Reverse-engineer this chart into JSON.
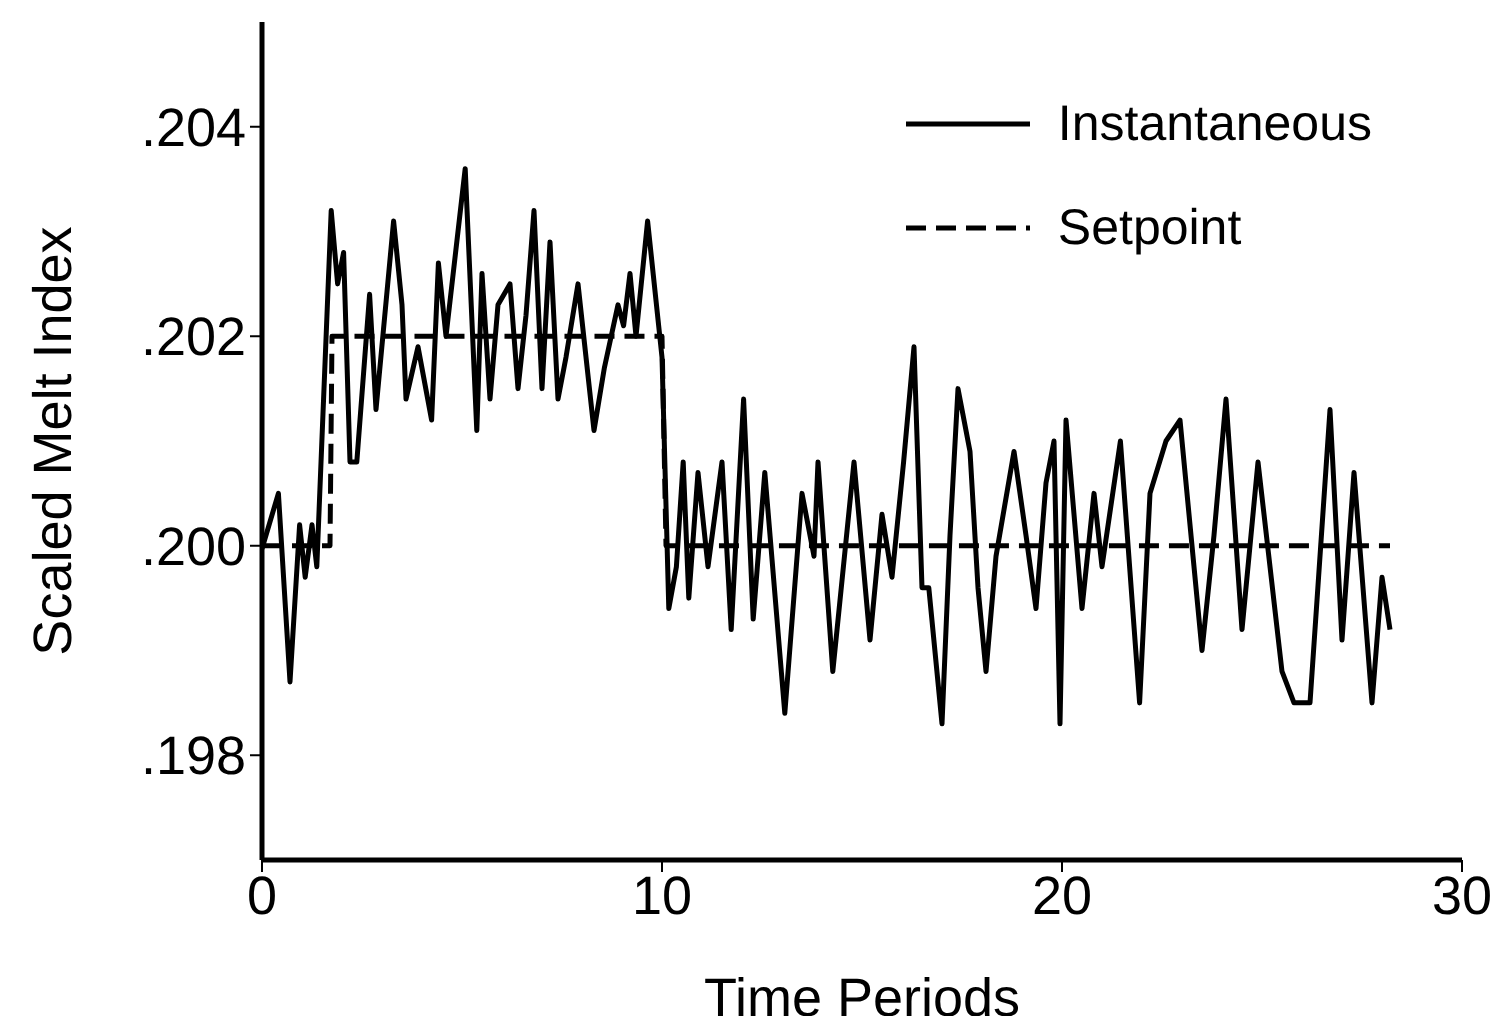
{
  "chart_data": {
    "type": "line",
    "xlabel": "Time Periods",
    "ylabel": "Scaled Melt Index",
    "xlim": [
      0,
      30
    ],
    "xticks": [
      0,
      10,
      20,
      30
    ],
    "ylim": [
      0.197,
      0.205
    ],
    "yticks": [
      {
        "value": 0.198,
        "label": ".198"
      },
      {
        "value": 0.2,
        "label": ".200"
      },
      {
        "value": 0.202,
        "label": ".202"
      },
      {
        "value": 0.204,
        "label": ".204"
      }
    ],
    "grid": false,
    "legend": "top right",
    "marker": "none",
    "series": [
      {
        "name": "Instantaneous",
        "color": "#000000",
        "line_style": "solid",
        "x": [
          0,
          0.41,
          0.7,
          0.94,
          1.08,
          1.25,
          1.37,
          1.73,
          1.89,
          2.04,
          2.2,
          2.37,
          2.69,
          2.85,
          3.29,
          3.5,
          3.6,
          3.9,
          4.24,
          4.41,
          4.6,
          5.08,
          5.37,
          5.5,
          5.7,
          5.9,
          6.2,
          6.4,
          6.6,
          6.8,
          7.0,
          7.2,
          7.4,
          7.6,
          7.9,
          8.3,
          8.56,
          8.9,
          9.04,
          9.2,
          9.35,
          9.64,
          10.0,
          10.17,
          10.36,
          10.53,
          10.67,
          10.9,
          11.15,
          11.5,
          11.73,
          12.04,
          12.28,
          12.57,
          13.07,
          13.5,
          13.8,
          13.9,
          14.27,
          14.8,
          15.2,
          15.5,
          15.75,
          16.04,
          16.3,
          16.5,
          16.67,
          17.0,
          17.2,
          17.4,
          17.7,
          17.9,
          18.1,
          18.35,
          18.8,
          19.1,
          19.35,
          19.6,
          19.8,
          19.95,
          20.1,
          20.5,
          20.8,
          21.0,
          21.46,
          21.94,
          22.2,
          22.6,
          22.95,
          23.5,
          23.8,
          24.1,
          24.5,
          24.9,
          25.5,
          25.8,
          26.2,
          26.7,
          27.0,
          27.3,
          27.75,
          28.0,
          28.2
        ],
        "values": [
          0.19997,
          0.2005,
          0.1987,
          0.2002,
          0.1997,
          0.2002,
          0.1998,
          0.2032,
          0.2025,
          0.2028,
          0.2008,
          0.2008,
          0.2024,
          0.2013,
          0.2031,
          0.2023,
          0.2014,
          0.2019,
          0.2012,
          0.2027,
          0.202,
          0.2036,
          0.2011,
          0.2026,
          0.2014,
          0.2023,
          0.2025,
          0.2015,
          0.2022,
          0.2032,
          0.2015,
          0.2029,
          0.2014,
          0.2018,
          0.2025,
          0.2011,
          0.2017,
          0.2023,
          0.2021,
          0.2026,
          0.202,
          0.2031,
          0.2018,
          0.1994,
          0.1998,
          0.2008,
          0.1995,
          0.2007,
          0.1998,
          0.2008,
          0.1992,
          0.2014,
          0.1993,
          0.2007,
          0.1984,
          0.2005,
          0.1999,
          0.2008,
          0.1988,
          0.2008,
          0.1991,
          0.2003,
          0.1997,
          0.2008,
          0.2019,
          0.1996,
          0.1996,
          0.1983,
          0.2001,
          0.2015,
          0.2009,
          0.1996,
          0.1988,
          0.1999,
          0.2009,
          0.2001,
          0.1994,
          0.2006,
          0.201,
          0.1983,
          0.2012,
          0.1994,
          0.2005,
          0.1998,
          0.201,
          0.1985,
          0.2005,
          0.201,
          0.2012,
          0.199,
          0.2001,
          0.2014,
          0.1992,
          0.2008,
          0.1988,
          0.1985,
          0.1985,
          0.2013,
          0.1991,
          0.2007,
          0.1985,
          0.1997,
          0.1992
        ]
      },
      {
        "name": "Setpoint",
        "color": "#000000",
        "line_style": "dashed",
        "x": [
          0,
          1.7,
          1.75,
          10,
          10.1,
          28.2
        ],
        "values": [
          0.2,
          0.2,
          0.202,
          0.202,
          0.2,
          0.2
        ]
      }
    ]
  }
}
